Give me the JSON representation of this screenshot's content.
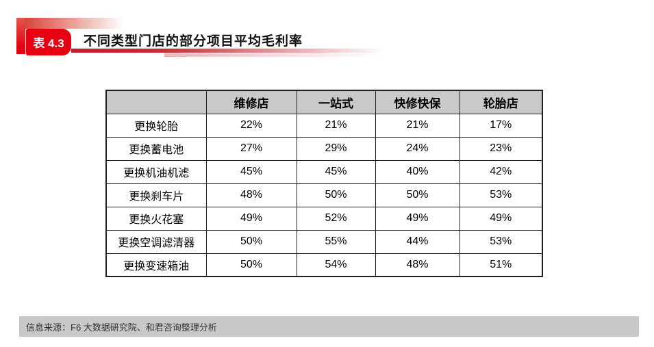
{
  "header": {
    "badge_label": "表 4.3",
    "title": "不同类型门店的部分项目平均毛利率"
  },
  "table": {
    "columns": [
      "",
      "维修店",
      "一站式",
      "快修快保",
      "轮胎店"
    ],
    "rows": [
      {
        "label": "更换轮胎",
        "values": [
          "22%",
          "21%",
          "21%",
          "17%"
        ]
      },
      {
        "label": "更换蓄电池",
        "values": [
          "27%",
          "29%",
          "24%",
          "23%"
        ]
      },
      {
        "label": "更换机油机滤",
        "values": [
          "45%",
          "45%",
          "40%",
          "42%"
        ]
      },
      {
        "label": "更换刹车片",
        "values": [
          "48%",
          "50%",
          "50%",
          "53%"
        ]
      },
      {
        "label": "更换火花塞",
        "values": [
          "49%",
          "52%",
          "49%",
          "49%"
        ]
      },
      {
        "label": "更换空调滤清器",
        "values": [
          "50%",
          "55%",
          "44%",
          "53%"
        ]
      },
      {
        "label": "更换变速箱油",
        "values": [
          "50%",
          "54%",
          "48%",
          "51%"
        ]
      }
    ]
  },
  "chart_data": {
    "type": "table",
    "title": "不同类型门店的部分项目平均毛利率",
    "categories": [
      "维修店",
      "一站式",
      "快修快保",
      "轮胎店"
    ],
    "series": [
      {
        "name": "更换轮胎",
        "values": [
          22,
          21,
          21,
          17
        ]
      },
      {
        "name": "更换蓄电池",
        "values": [
          27,
          29,
          24,
          23
        ]
      },
      {
        "name": "更换机油机滤",
        "values": [
          45,
          45,
          40,
          42
        ]
      },
      {
        "name": "更换刹车片",
        "values": [
          48,
          50,
          50,
          53
        ]
      },
      {
        "name": "更换火花塞",
        "values": [
          49,
          52,
          49,
          49
        ]
      },
      {
        "name": "更换空调滤清器",
        "values": [
          50,
          55,
          44,
          53
        ]
      },
      {
        "name": "更换变速箱油",
        "values": [
          50,
          54,
          48,
          51
        ]
      }
    ],
    "unit": "%"
  },
  "footer": {
    "source_text": "信息来源：F6 大数据研究院、和君咨询整理分析"
  },
  "colors": {
    "accent_red": "#e60012",
    "table_header_gray": "#c9c9c9",
    "footer_bar_gray": "#c8c8c8",
    "table_border": "#1f1f1f"
  }
}
